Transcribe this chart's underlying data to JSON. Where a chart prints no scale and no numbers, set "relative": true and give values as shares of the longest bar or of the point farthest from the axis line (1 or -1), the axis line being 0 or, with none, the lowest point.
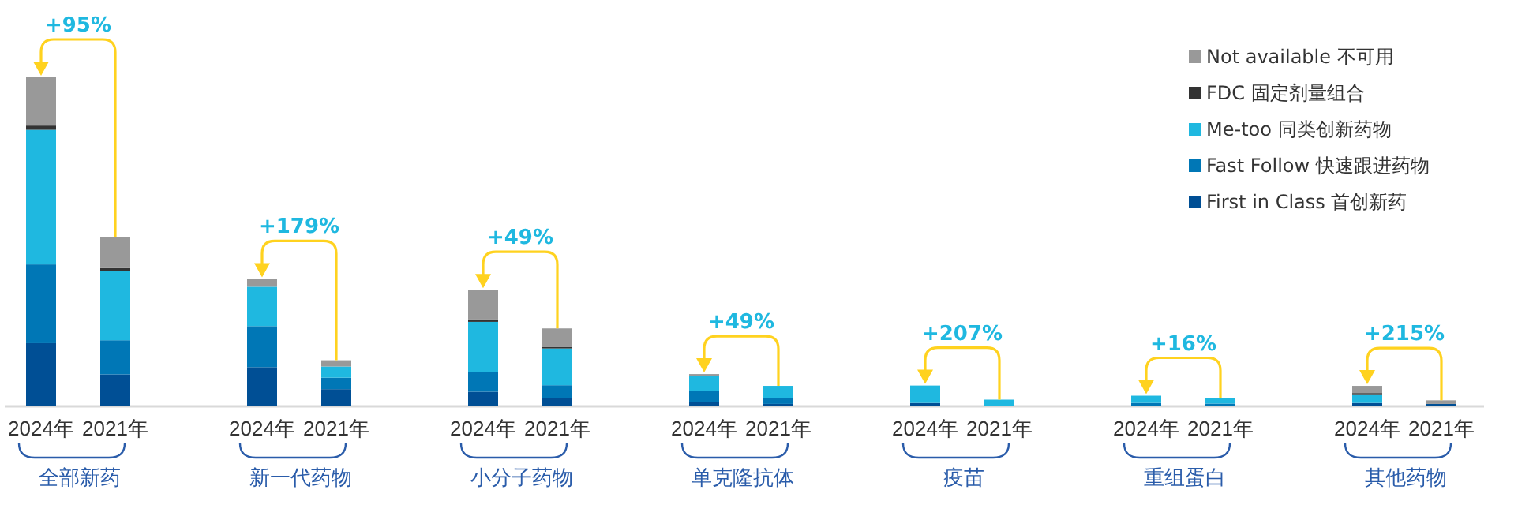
{
  "chart_data": {
    "type": "bar",
    "stacked": true,
    "relative": true,
    "legend": "top right",
    "categories": [
      "2024年",
      "2021年",
      "2024年",
      "2021年",
      "2024年",
      "2021年",
      "2024年",
      "2021年",
      "2024年",
      "2021年",
      "2024年",
      "2021年",
      "2024年",
      "2021年"
    ],
    "series": [
      {
        "name": "First in Class 首创新药",
        "color": "#004f95",
        "values": [
          0.19,
          0.095,
          0.117,
          0.05,
          0.042,
          0.023,
          0.01,
          0.005,
          0.008,
          0,
          0,
          0,
          0.008,
          0.005
        ]
      },
      {
        "name": "Fast Follow 快速跟进药物",
        "color": "#0077b6",
        "values": [
          0.24,
          0.104,
          0.125,
          0.035,
          0.059,
          0.039,
          0.034,
          0.018,
          0,
          0,
          0.008,
          0.006,
          0,
          0
        ]
      },
      {
        "name": "Me-too 同类创新药物",
        "color": "#1fb8e0",
        "values": [
          0.41,
          0.212,
          0.12,
          0.034,
          0.154,
          0.112,
          0.047,
          0.037,
          0.053,
          0.018,
          0.022,
          0.018,
          0.024,
          0
        ]
      },
      {
        "name": "FDC 固定剂量组合",
        "color": "#333333",
        "values": [
          0.013,
          0.008,
          0,
          0,
          0.008,
          0.005,
          0,
          0,
          0,
          0,
          0,
          0,
          0.006,
          0
        ]
      },
      {
        "name": "Not available 不可用",
        "color": "#999999",
        "values": [
          0.147,
          0.093,
          0.024,
          0.019,
          0.09,
          0.056,
          0.005,
          0,
          0,
          0,
          0,
          0,
          0.022,
          0.011
        ]
      }
    ],
    "annotations": [
      "+95%",
      "+179%",
      "+49%",
      "+49%",
      "+207%",
      "+16%",
      "+215%",
      "全部新药",
      "新一代药物",
      "小分子药物",
      "单克隆抗体",
      "疫苗",
      "重组蛋白",
      "其他药物"
    ]
  }
}
